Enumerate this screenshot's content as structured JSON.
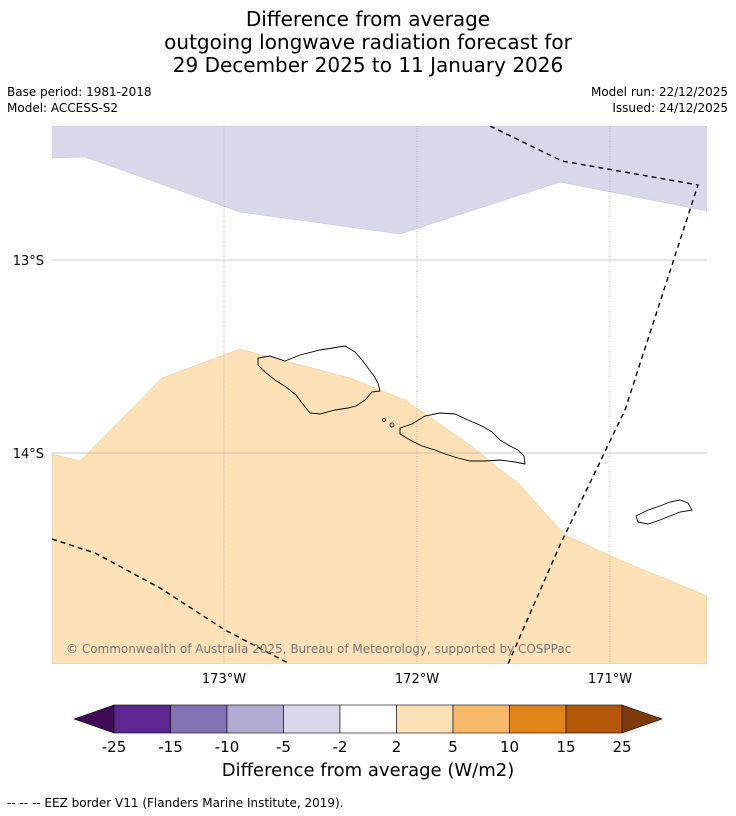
{
  "title": {
    "line1": "Difference from average",
    "line2": "outgoing longwave radiation forecast for",
    "line3": "29 December 2025 to 11 January 2026"
  },
  "meta": {
    "base_period": "Base period: 1981-2018",
    "model": "Model: ACCESS-S2",
    "model_run": "Model run: 22/12/2025",
    "issued": "Issued: 24/12/2025"
  },
  "map": {
    "lat_labels": [
      "13°S",
      "14°S"
    ],
    "lon_labels": [
      "173°W",
      "172°W",
      "171°W"
    ],
    "copyright": "© Commonwealth of Australia 2025, Bureau of Meteorology, supported by COSPPac",
    "colors": {
      "negative_small": "#d8d8ea",
      "positive_small": "#fce0b6",
      "grid": "#888888",
      "coast": "#000000"
    }
  },
  "colorbar": {
    "ticks": [
      "-25",
      "-15",
      "-10",
      "-5",
      "-2",
      "2",
      "5",
      "10",
      "15",
      "25"
    ],
    "colors": [
      "#3f0a56",
      "#5d2690",
      "#8272b2",
      "#b1abd2",
      "#d8d8ea",
      "#ffffff",
      "#fce0b6",
      "#f8b86a",
      "#e1851a",
      "#b35709",
      "#7f3a0c"
    ],
    "title": "Difference from average (W/m2)"
  },
  "footer": "--  --  -- EEZ border V11 (Flanders Marine Institute, 2019)."
}
